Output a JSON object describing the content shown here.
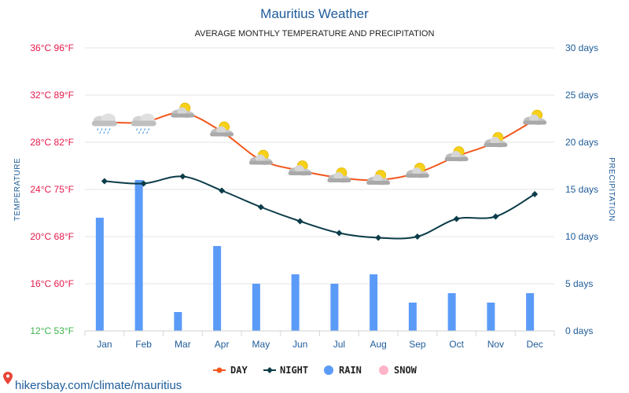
{
  "chart_data": {
    "type": "line",
    "title": "Mauritius Weather",
    "subtitle": "AVERAGE MONTHLY TEMPERATURE AND PRECIPITATION",
    "categories": [
      "Jan",
      "Feb",
      "Mar",
      "Apr",
      "May",
      "Jun",
      "Jul",
      "Aug",
      "Sep",
      "Oct",
      "Nov",
      "Dec"
    ],
    "y_left": {
      "label": "TEMPERATURE",
      "ylim": [
        12,
        36
      ],
      "ticks": [
        {
          "value": 36,
          "label": "36°C 96°F",
          "color": "#e6194b"
        },
        {
          "value": 32,
          "label": "32°C 89°F",
          "color": "#e6194b"
        },
        {
          "value": 28,
          "label": "28°C 82°F",
          "color": "#e6194b"
        },
        {
          "value": 24,
          "label": "24°C 75°F",
          "color": "#e6194b"
        },
        {
          "value": 20,
          "label": "20°C 68°F",
          "color": "#e6194b"
        },
        {
          "value": 16,
          "label": "16°C 60°F",
          "color": "#e6194b"
        },
        {
          "value": 12,
          "label": "12°C 53°F",
          "color": "#3cb44b"
        }
      ]
    },
    "y_right": {
      "label": "PRECIPITATION",
      "ylim": [
        0,
        30
      ],
      "ticks": [
        {
          "value": 30,
          "label": "30 days"
        },
        {
          "value": 25,
          "label": "25 days"
        },
        {
          "value": 20,
          "label": "20 days"
        },
        {
          "value": 15,
          "label": "15 days"
        },
        {
          "value": 10,
          "label": "10 days"
        },
        {
          "value": 5,
          "label": "5 days"
        },
        {
          "value": 0,
          "label": "0 days"
        }
      ]
    },
    "series": [
      {
        "name": "DAY",
        "type": "line",
        "axis": "left",
        "color": "#f2571d",
        "values": [
          29.7,
          29.7,
          30.5,
          28.9,
          26.5,
          25.6,
          25.0,
          24.8,
          25.4,
          26.8,
          28.0,
          29.9
        ]
      },
      {
        "name": "NIGHT",
        "type": "line",
        "axis": "left",
        "color": "#0b3c49",
        "values": [
          24.7,
          24.5,
          25.1,
          23.9,
          22.5,
          21.3,
          20.3,
          19.9,
          20.0,
          21.5,
          21.7,
          23.6
        ]
      },
      {
        "name": "RAIN",
        "type": "bar",
        "axis": "right",
        "color": "#5b9bf8",
        "values": [
          12,
          16,
          2,
          9,
          5,
          6,
          5,
          6,
          3,
          4,
          3,
          4
        ]
      },
      {
        "name": "SNOW",
        "type": "bar",
        "axis": "right",
        "color": "#ffb3c6",
        "values": [
          0,
          0,
          0,
          0,
          0,
          0,
          0,
          0,
          0,
          0,
          0,
          0
        ]
      }
    ],
    "weather_icons": [
      "rain-cloud-icon",
      "rain-cloud-icon",
      "sun-cloud-icon",
      "sun-cloud-icon",
      "sun-cloud-icon",
      "sun-cloud-icon",
      "sun-cloud-icon",
      "sun-cloud-icon",
      "sun-cloud-icon",
      "sun-cloud-icon",
      "sun-cloud-icon",
      "sun-cloud-icon"
    ],
    "grid": true,
    "legend_position": "bottom-center"
  },
  "source_link": "hikersbay.com/climate/mauritius",
  "colors": {
    "text_blue": "#1f5c99",
    "grid": "#e6e6e6"
  }
}
